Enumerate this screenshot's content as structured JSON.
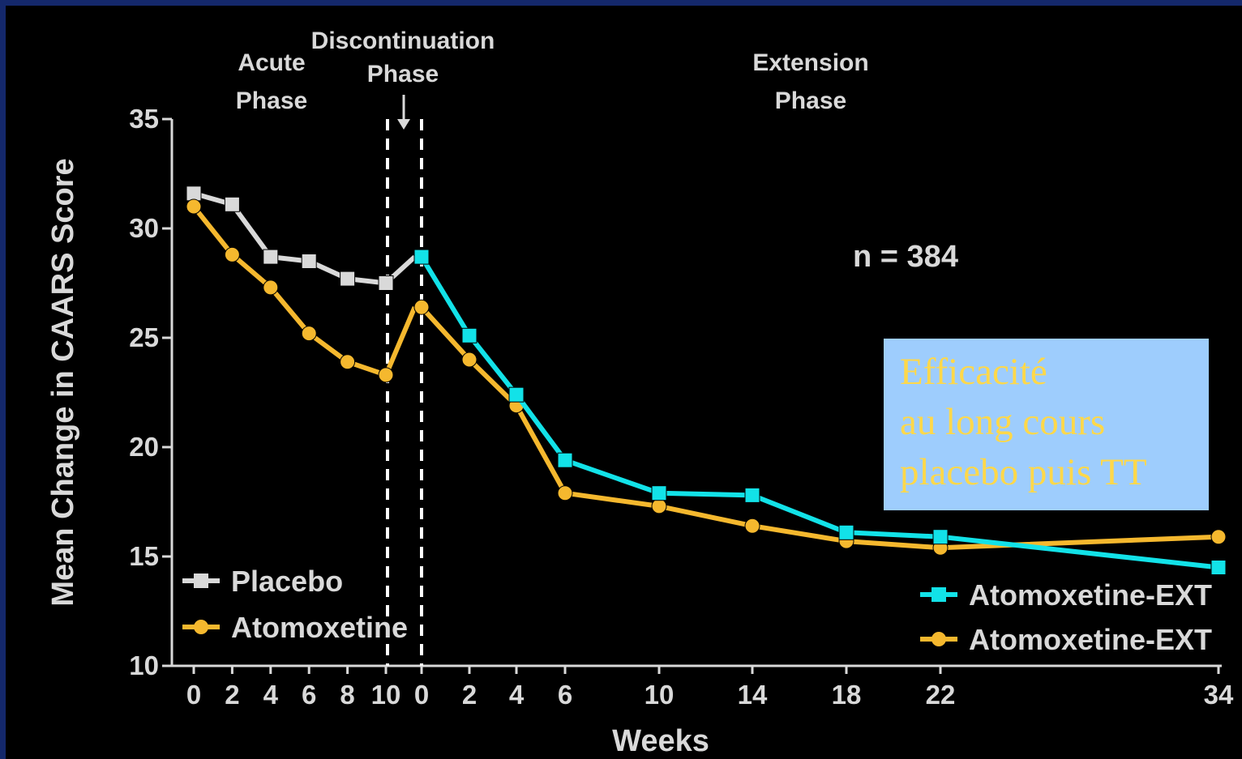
{
  "chart_data": {
    "type": "line",
    "ylabel": "Mean Change in CAARS Score",
    "xlabel": "Weeks",
    "ylim": [
      10,
      35
    ],
    "yticks": [
      10,
      15,
      20,
      25,
      30,
      35
    ],
    "x_ticks_acute": [
      "0",
      "2",
      "4",
      "6",
      "8",
      "10"
    ],
    "x_ticks_cont": [
      "0",
      "2",
      "4",
      "6",
      "10",
      "14",
      "18",
      "22",
      "34"
    ],
    "phases": {
      "acute": [
        "Acute",
        "Phase"
      ],
      "discontinuation": [
        "Discontinuation",
        "Phase"
      ],
      "extension": [
        "Extension",
        "Phase"
      ]
    },
    "annotation": "n = 384",
    "series": [
      {
        "name": "Placebo",
        "segment": "acute",
        "marker": "square",
        "color": "#d9d9d9",
        "x": [
          0,
          2,
          4,
          6,
          8,
          10,
          11.5
        ],
        "y": [
          31.6,
          31.1,
          28.7,
          28.5,
          27.7,
          27.5,
          28.7
        ]
      },
      {
        "name": "Atomoxetine",
        "segment": "acute",
        "marker": "circle",
        "color": "#f5b82e",
        "x": [
          0,
          2,
          4,
          6,
          8,
          10,
          11.5
        ],
        "y": [
          31.0,
          28.8,
          27.3,
          25.2,
          23.9,
          23.3,
          26.4
        ]
      },
      {
        "name": "Atomoxetine-EXT",
        "segment": "extension",
        "marker": "square",
        "color": "#12e2e8",
        "x": [
          0,
          2,
          4,
          6,
          10,
          14,
          18,
          22,
          34
        ],
        "y": [
          28.7,
          25.1,
          22.4,
          19.4,
          17.9,
          17.8,
          16.1,
          15.9,
          14.5
        ]
      },
      {
        "name": "Atomoxetine-EXT",
        "segment": "extension",
        "marker": "circle",
        "color": "#f5b82e",
        "x": [
          0,
          2,
          4,
          6,
          10,
          14,
          18,
          22,
          34
        ],
        "y": [
          26.4,
          24.0,
          21.9,
          17.9,
          17.3,
          16.4,
          15.7,
          15.4,
          15.9
        ]
      }
    ]
  },
  "note": {
    "lines": [
      "Efficacité",
      "au long cours",
      "placebo puis TT"
    ],
    "text_color": "#ffd84a",
    "background": "#9ecdfd"
  }
}
